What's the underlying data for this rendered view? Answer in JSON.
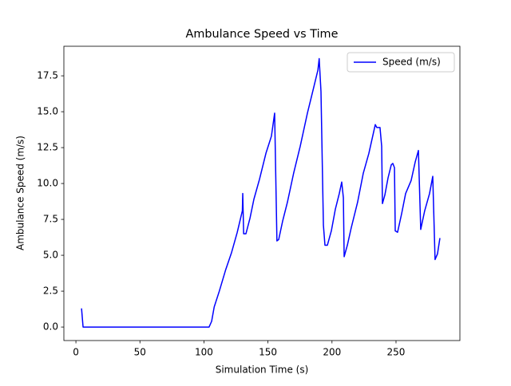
{
  "chart_data": {
    "type": "line",
    "title": "Ambulance Speed vs Time",
    "xlabel": "Simulation Time (s)",
    "ylabel": "Ambulance Speed (m/s)",
    "x": [
      4.4,
      5.6,
      104,
      106,
      108,
      112,
      117,
      121.6,
      126,
      130,
      130.3,
      131,
      132.8,
      136,
      139,
      143.4,
      148.4,
      152.7,
      155.2,
      157,
      158.4,
      161.5,
      165.2,
      170,
      175.2,
      180.8,
      185.2,
      189,
      190,
      191.4,
      193.3,
      194.5,
      196.4,
      199.5,
      202.6,
      205.7,
      207.6,
      208.9,
      209.5,
      212,
      215,
      220,
      224.4,
      228.8,
      233.8,
      235,
      237.5,
      238.8,
      239.4,
      241.3,
      243.8,
      246.3,
      247.5,
      248.8,
      249.4,
      251.2,
      254.4,
      257.5,
      261.8,
      265,
      267.5,
      269.3,
      272.4,
      276.2,
      278.7,
      280.5,
      282.4,
      284.3
    ],
    "series": [
      {
        "name": "Speed (m/s)",
        "color": "#0000ff",
        "values": [
          1.3,
          0,
          0,
          0.4,
          1.4,
          2.5,
          4,
          5.2,
          6.6,
          8.1,
          9.3,
          6.5,
          6.5,
          7.6,
          8.9,
          10.3,
          12.1,
          13.3,
          14.9,
          6.0,
          6.1,
          7.4,
          8.7,
          10.7,
          12.6,
          14.9,
          16.5,
          17.9,
          18.7,
          16.4,
          7.1,
          5.7,
          5.7,
          6.7,
          8.2,
          9.3,
          10.1,
          9.0,
          4.9,
          5.7,
          6.9,
          8.7,
          10.7,
          12.1,
          14.1,
          13.9,
          13.9,
          12.6,
          8.6,
          9.2,
          10.4,
          11.3,
          11.4,
          11.1,
          6.7,
          6.6,
          7.9,
          9.3,
          10.2,
          11.5,
          12.3,
          6.8,
          8.1,
          9.3,
          10.5,
          4.7,
          5.1,
          6.2
        ]
      }
    ],
    "xlim": [
      -9.4,
      299.9
    ],
    "ylim": [
      -0.94,
      19.56
    ],
    "xticks": [
      0,
      50,
      100,
      150,
      200,
      250
    ],
    "yticks": [
      {
        "value": 0,
        "label": "0.0"
      },
      2.5,
      {
        "value": 5,
        "label": "5.0"
      },
      7.5,
      {
        "value": 10,
        "label": "10.0"
      },
      12.5,
      {
        "value": 15,
        "label": "15.0"
      },
      17.5
    ],
    "legend": "upper right",
    "grid": false
  }
}
